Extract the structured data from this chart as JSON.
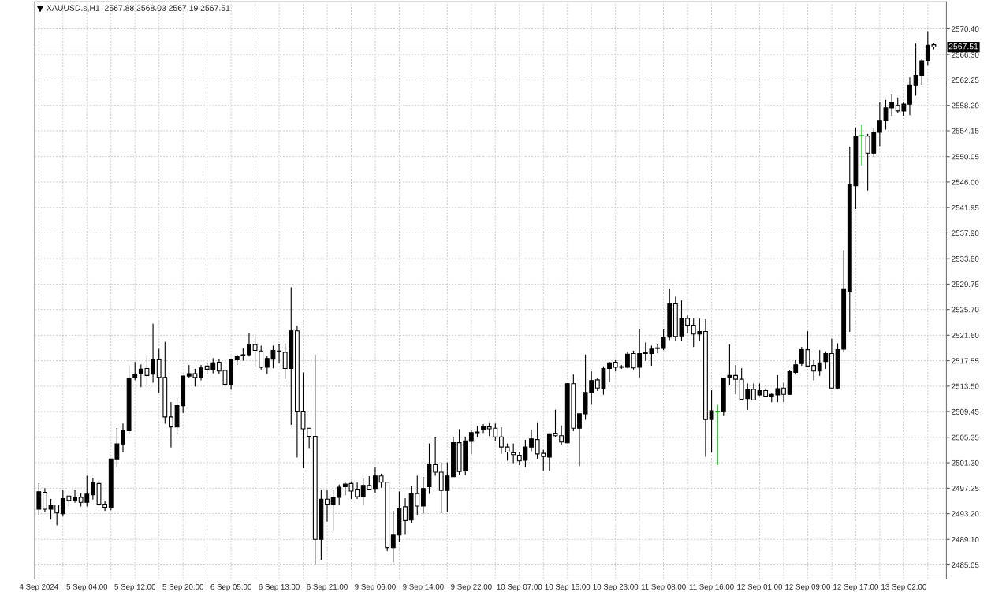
{
  "chart_data": {
    "type": "candlestick",
    "title": "XAUUSD.s,H1  2567.88 2568.03 2567.19 2567.51",
    "categories": [
      "4 Sep 2024",
      null,
      null,
      null,
      null,
      null,
      null,
      null,
      "5 Sep 04:00",
      null,
      null,
      null,
      null,
      null,
      null,
      null,
      "5 Sep 12:00",
      null,
      null,
      null,
      null,
      null,
      null,
      null,
      "5 Sep 20:00",
      null,
      null,
      null,
      null,
      null,
      null,
      null,
      "6 Sep 05:00",
      null,
      null,
      null,
      null,
      null,
      null,
      null,
      "6 Sep 13:00",
      null,
      null,
      null,
      null,
      null,
      null,
      null,
      "6 Sep 21:00",
      null,
      null,
      null,
      null,
      null,
      null,
      null,
      "9 Sep 06:00",
      null,
      null,
      null,
      null,
      null,
      null,
      null,
      "9 Sep 14:00",
      null,
      null,
      null,
      null,
      null,
      null,
      null,
      "9 Sep 22:00",
      null,
      null,
      null,
      null,
      null,
      null,
      null,
      "10 Sep 07:00",
      null,
      null,
      null,
      null,
      null,
      null,
      null,
      "10 Sep 15:00",
      null,
      null,
      null,
      null,
      null,
      null,
      null,
      "10 Sep 23:00",
      null,
      null,
      null,
      null,
      null,
      null,
      null,
      "11 Sep 08:00",
      null,
      null,
      null,
      null,
      null,
      null,
      null,
      "11 Sep 16:00",
      null,
      null,
      null,
      null,
      null,
      null,
      null,
      "12 Sep 01:00",
      null,
      null,
      null,
      null,
      null,
      null,
      null,
      "12 Sep 09:00",
      null,
      null,
      null,
      null,
      null,
      null,
      null,
      "12 Sep 17:00",
      null,
      null,
      null,
      null,
      null,
      null,
      null,
      "13 Sep 02:00",
      null,
      null,
      null,
      null,
      null
    ],
    "ohlc": [
      [
        2493.9,
        2498.0,
        2493.1,
        2496.7
      ],
      [
        2496.6,
        2497.2,
        2493.5,
        2493.9
      ],
      [
        2493.9,
        2495.5,
        2492.3,
        2494.6
      ],
      [
        2494.6,
        2494.6,
        2491.4,
        2493.3
      ],
      [
        2493.2,
        2496.9,
        2492.8,
        2495.6
      ],
      [
        2496.0,
        2496.0,
        2494.4,
        2495.3
      ],
      [
        2495.3,
        2496.9,
        2495.0,
        2495.8
      ],
      [
        2495.8,
        2496.4,
        2494.4,
        2495.0
      ],
      [
        2495.0,
        2499.2,
        2494.4,
        2496.3
      ],
      [
        2496.2,
        2498.9,
        2495.5,
        2498.1
      ],
      [
        2498.0,
        2498.5,
        2494.4,
        2494.7
      ],
      [
        2494.7,
        2495.1,
        2493.7,
        2494.2
      ],
      [
        2494.1,
        2501.9,
        2493.8,
        2501.9
      ],
      [
        2501.9,
        2506.8,
        2500.7,
        2504.3
      ],
      [
        2504.3,
        2507.5,
        2503.0,
        2506.4
      ],
      [
        2506.4,
        2516.7,
        2506.0,
        2514.7
      ],
      [
        2514.8,
        2517.3,
        2514.5,
        2515.4
      ],
      [
        2515.5,
        2516.9,
        2513.4,
        2516.2
      ],
      [
        2516.3,
        2518.4,
        2513.7,
        2515.2
      ],
      [
        2515.4,
        2523.4,
        2514.1,
        2517.7
      ],
      [
        2517.7,
        2519.4,
        2512.5,
        2514.9
      ],
      [
        2514.9,
        2520.5,
        2507.6,
        2508.6
      ],
      [
        2508.6,
        2510.9,
        2503.8,
        2507.0
      ],
      [
        2507.0,
        2511.6,
        2506.0,
        2510.4
      ],
      [
        2510.4,
        2515.1,
        2509.3,
        2515.1
      ],
      [
        2515.1,
        2516.8,
        2514.8,
        2515.5
      ],
      [
        2515.5,
        2516.2,
        2513.5,
        2514.9
      ],
      [
        2514.8,
        2516.8,
        2514.5,
        2516.4
      ],
      [
        2516.7,
        2517.1,
        2515.5,
        2516.2
      ],
      [
        2516.1,
        2517.9,
        2515.6,
        2517.2
      ],
      [
        2517.3,
        2517.7,
        2515.5,
        2515.9
      ],
      [
        2516.0,
        2516.7,
        2513.5,
        2513.8
      ],
      [
        2513.8,
        2517.8,
        2513.0,
        2517.7
      ],
      [
        2517.7,
        2518.5,
        2516.9,
        2518.3
      ],
      [
        2518.4,
        2519.5,
        2517.6,
        2518.5
      ],
      [
        2518.5,
        2521.9,
        2518.3,
        2520.1
      ],
      [
        2520.1,
        2521.4,
        2516.6,
        2519.2
      ],
      [
        2519.1,
        2519.9,
        2516.2,
        2516.5
      ],
      [
        2516.5,
        2518.3,
        2515.5,
        2517.9
      ],
      [
        2517.8,
        2519.9,
        2516.4,
        2519.2
      ],
      [
        2519.0,
        2520.1,
        2517.2,
        2519.1
      ],
      [
        2518.9,
        2520.3,
        2514.7,
        2516.3
      ],
      [
        2516.3,
        2529.2,
        2507.4,
        2522.3
      ],
      [
        2522.3,
        2523.1,
        2502.2,
        2509.4
      ],
      [
        2509.4,
        2515.6,
        2500.5,
        2506.7
      ],
      [
        2506.8,
        2506.8,
        2503.7,
        2505.5
      ],
      [
        2505.5,
        2518.5,
        2485.1,
        2489.1
      ],
      [
        2489.1,
        2497.0,
        2485.9,
        2495.5
      ],
      [
        2495.5,
        2497.0,
        2492.0,
        2494.7
      ],
      [
        2494.7,
        2496.9,
        2490.6,
        2495.8
      ],
      [
        2495.8,
        2497.8,
        2494.7,
        2497.4
      ],
      [
        2497.5,
        2498.1,
        2496.2,
        2497.9
      ],
      [
        2498.0,
        2498.3,
        2495.6,
        2496.8
      ],
      [
        2497.1,
        2498.1,
        2495.6,
        2495.9
      ],
      [
        2495.9,
        2498.7,
        2494.7,
        2497.7
      ],
      [
        2497.7,
        2499.1,
        2497.1,
        2497.1
      ],
      [
        2497.2,
        2500.5,
        2496.6,
        2499.2
      ],
      [
        2499.2,
        2499.5,
        2497.4,
        2498.2
      ],
      [
        2498.2,
        2498.2,
        2487.3,
        2487.8
      ],
      [
        2487.8,
        2493.6,
        2485.5,
        2489.8
      ],
      [
        2489.8,
        2496.7,
        2488.7,
        2494.1
      ],
      [
        2494.3,
        2495.6,
        2489.9,
        2492.1
      ],
      [
        2492.2,
        2497.6,
        2491.7,
        2496.4
      ],
      [
        2496.4,
        2499.2,
        2493.1,
        2494.4
      ],
      [
        2494.4,
        2499.0,
        2493.3,
        2497.2
      ],
      [
        2497.5,
        2504.3,
        2496.4,
        2501.0
      ],
      [
        2501.0,
        2505.3,
        2499.3,
        2499.8
      ],
      [
        2499.8,
        2501.3,
        2493.3,
        2496.9
      ],
      [
        2496.9,
        2501.3,
        2493.6,
        2499.2
      ],
      [
        2499.1,
        2505.4,
        2499.1,
        2504.5
      ],
      [
        2504.5,
        2506.6,
        2499.5,
        2499.9
      ],
      [
        2500.0,
        2505.4,
        2499.4,
        2504.8
      ],
      [
        2504.7,
        2506.4,
        2502.7,
        2506.1
      ],
      [
        2506.1,
        2507.1,
        2505.4,
        2506.2
      ],
      [
        2506.6,
        2507.4,
        2506.1,
        2507.1
      ],
      [
        2507.0,
        2507.7,
        2505.6,
        2506.7
      ],
      [
        2506.8,
        2507.5,
        2504.8,
        2505.4
      ],
      [
        2505.4,
        2506.9,
        2502.8,
        2503.8
      ],
      [
        2503.8,
        2504.3,
        2501.7,
        2503.0
      ],
      [
        2502.9,
        2504.3,
        2501.3,
        2502.6
      ],
      [
        2502.5,
        2503.0,
        2501.0,
        2501.6
      ],
      [
        2501.7,
        2504.9,
        2500.7,
        2503.8
      ],
      [
        2503.8,
        2506.5,
        2503.2,
        2505.1
      ],
      [
        2505.0,
        2507.7,
        2502.0,
        2502.7
      ],
      [
        2502.8,
        2503.3,
        2500.1,
        2502.3
      ],
      [
        2502.2,
        2505.9,
        2500.1,
        2505.9
      ],
      [
        2506.0,
        2509.7,
        2505.4,
        2505.6
      ],
      [
        2505.6,
        2507.2,
        2504.2,
        2504.6
      ],
      [
        2504.5,
        2513.9,
        2504.5,
        2513.9
      ],
      [
        2513.9,
        2515.3,
        2506.4,
        2506.8
      ],
      [
        2506.8,
        2509.1,
        2500.8,
        2509.1
      ],
      [
        2509.1,
        2518.5,
        2508.2,
        2512.5
      ],
      [
        2512.5,
        2515.8,
        2510.6,
        2514.4
      ],
      [
        2514.5,
        2514.7,
        2512.8,
        2513.2
      ],
      [
        2513.1,
        2516.6,
        2512.2,
        2516.3
      ],
      [
        2516.3,
        2517.3,
        2514.2,
        2517.2
      ],
      [
        2517.3,
        2517.6,
        2515.9,
        2516.5
      ],
      [
        2516.5,
        2516.8,
        2516.3,
        2516.6
      ],
      [
        2516.5,
        2518.9,
        2516.4,
        2518.6
      ],
      [
        2518.7,
        2519.1,
        2516.2,
        2516.4
      ],
      [
        2516.5,
        2522.6,
        2514.9,
        2518.7
      ],
      [
        2518.7,
        2520.4,
        2517.6,
        2518.8
      ],
      [
        2518.7,
        2519.9,
        2516.8,
        2519.4
      ],
      [
        2519.5,
        2520.1,
        2518.8,
        2519.6
      ],
      [
        2519.5,
        2522.6,
        2519.3,
        2521.3
      ],
      [
        2521.3,
        2529.0,
        2520.9,
        2526.6
      ],
      [
        2526.6,
        2527.7,
        2520.8,
        2521.4
      ],
      [
        2521.5,
        2527.1,
        2520.8,
        2524.3
      ],
      [
        2524.3,
        2524.7,
        2522.0,
        2523.2
      ],
      [
        2523.2,
        2524.2,
        2519.8,
        2521.8
      ],
      [
        2521.8,
        2524.2,
        2520.8,
        2522.2
      ],
      [
        2522.2,
        2524.1,
        2502.3,
        2508.2
      ],
      [
        2508.2,
        2512.8,
        2503.0,
        2509.6
      ],
      [
        2509.4,
        2510.5,
        2501.0,
        2509.4
      ],
      [
        2509.4,
        2514.8,
        2508.8,
        2514.8
      ],
      [
        2514.8,
        2520.1,
        2513.7,
        2515.2
      ],
      [
        2515.2,
        2516.8,
        2512.3,
        2514.6
      ],
      [
        2514.6,
        2516.3,
        2511.3,
        2511.4
      ],
      [
        2511.5,
        2513.9,
        2509.8,
        2513.0
      ],
      [
        2513.0,
        2513.9,
        2511.3,
        2511.3
      ],
      [
        2512.1,
        2513.9,
        2512.0,
        2512.8
      ],
      [
        2512.8,
        2513.1,
        2511.8,
        2511.9
      ],
      [
        2511.9,
        2512.3,
        2511.0,
        2512.2
      ],
      [
        2512.1,
        2515.2,
        2511.0,
        2513.1
      ],
      [
        2513.2,
        2514.0,
        2511.0,
        2512.2
      ],
      [
        2512.2,
        2516.0,
        2512.2,
        2515.8
      ],
      [
        2515.7,
        2517.6,
        2515.4,
        2516.9
      ],
      [
        2517.1,
        2519.7,
        2516.8,
        2519.3
      ],
      [
        2519.3,
        2522.2,
        2516.7,
        2516.7
      ],
      [
        2516.8,
        2517.6,
        2514.5,
        2515.9
      ],
      [
        2515.9,
        2519.2,
        2515.2,
        2517.2
      ],
      [
        2517.4,
        2519.0,
        2516.3,
        2518.7
      ],
      [
        2518.7,
        2521.0,
        2513.2,
        2513.2
      ],
      [
        2513.2,
        2520.3,
        2513.1,
        2519.3
      ],
      [
        2519.4,
        2535.1,
        2518.9,
        2529.0
      ],
      [
        2528.5,
        2551.6,
        2522.2,
        2545.6
      ],
      [
        2545.4,
        2554.6,
        2541.8,
        2553.3
      ],
      [
        2553.4,
        2555.1,
        2548.7,
        2553.4
      ],
      [
        2553.3,
        2553.6,
        2544.7,
        2550.6
      ],
      [
        2550.6,
        2554.6,
        2550.1,
        2553.9
      ],
      [
        2553.9,
        2558.6,
        2551.8,
        2555.8
      ],
      [
        2555.8,
        2559.0,
        2554.4,
        2557.8
      ],
      [
        2557.8,
        2560.0,
        2556.6,
        2558.6
      ],
      [
        2558.2,
        2559.4,
        2557.1,
        2557.3
      ],
      [
        2557.3,
        2558.6,
        2556.6,
        2558.4
      ],
      [
        2558.4,
        2562.6,
        2556.7,
        2561.4
      ],
      [
        2561.4,
        2568.0,
        2559.8,
        2563.0
      ],
      [
        2563.0,
        2565.5,
        2561.5,
        2565.3
      ],
      [
        2565.3,
        2570.0,
        2564.6,
        2567.8
      ],
      [
        2567.88,
        2568.03,
        2567.19,
        2567.51
      ]
    ],
    "ylim": [
      2482.8,
      2574.7
    ],
    "yticks": [
      2485.05,
      {
        "value": 2489.1,
        "label": "2489.10"
      },
      {
        "value": 2493.2,
        "label": "2493.20"
      },
      2497.25,
      {
        "value": 2501.3,
        "label": "2501.30"
      },
      2505.35,
      2509.45,
      {
        "value": 2513.5,
        "label": "2513.50"
      },
      2517.55,
      {
        "value": 2521.6,
        "label": "2521.60"
      },
      {
        "value": 2525.7,
        "label": "2525.70"
      },
      2529.75,
      {
        "value": 2533.8,
        "label": "2533.80"
      },
      {
        "value": 2537.9,
        "label": "2537.90"
      },
      2541.95,
      {
        "value": 2546.0,
        "label": "2546.00"
      },
      2550.05,
      2554.15,
      {
        "value": 2558.2,
        "label": "2558.20"
      },
      2562.25,
      {
        "value": 2566.3,
        "label": "2566.30"
      },
      {
        "value": 2570.4,
        "label": "2570.40"
      }
    ],
    "ref_lines": [
      {
        "axis": "y",
        "value": 2567.51,
        "label": "2567.51",
        "color": "#a0a0a0"
      }
    ],
    "grid": true
  }
}
